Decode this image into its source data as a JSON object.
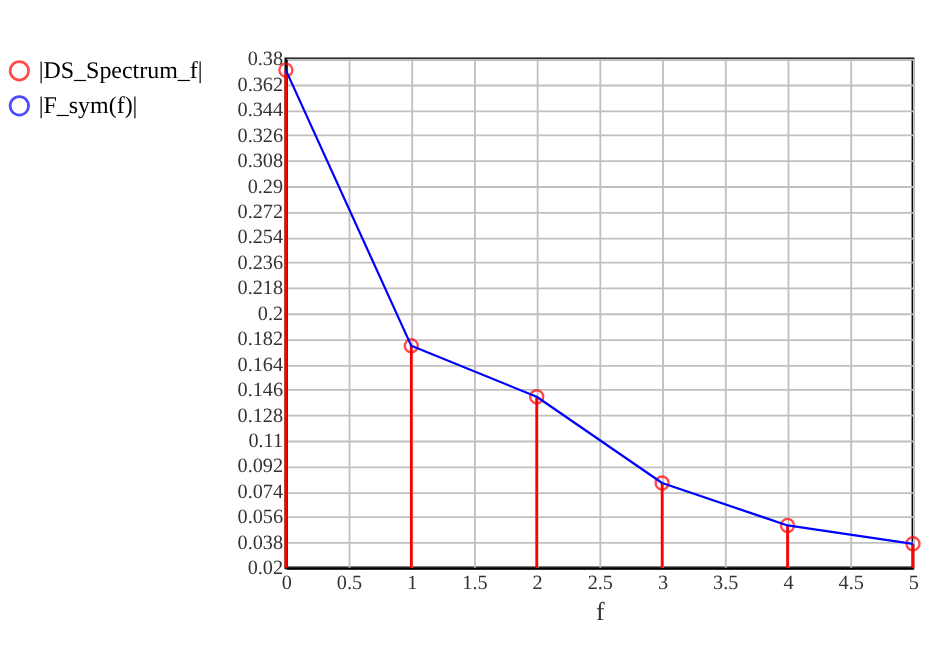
{
  "chart_data": {
    "type": "line",
    "xlabel": "f",
    "x": [
      0,
      1,
      2,
      3,
      4,
      5
    ],
    "series": [
      {
        "name": "|DS_Spectrum_f|",
        "type": "lollipop",
        "color": "#ff0000",
        "marker": "circle",
        "values": [
          0.372,
          0.177,
          0.141,
          0.08,
          0.05,
          0.037
        ]
      },
      {
        "name": "|F_sym(f)|",
        "color": "#0000ff",
        "marker": "none",
        "line_style": "solid",
        "values": [
          0.372,
          0.177,
          0.141,
          0.08,
          0.05,
          0.037
        ]
      }
    ],
    "xlim": [
      0,
      5
    ],
    "xticks": [
      0,
      0.5,
      1,
      1.5,
      2,
      2.5,
      3,
      3.5,
      4,
      4.5,
      5
    ],
    "ylim": [
      0.02,
      0.38
    ],
    "yticks": [
      0.02,
      0.038,
      0.056,
      0.074,
      0.092,
      0.11,
      0.128,
      0.146,
      0.164,
      0.182,
      0.2,
      0.218,
      0.236,
      0.254,
      0.272,
      0.29,
      0.308,
      0.326,
      0.344,
      0.362,
      0.38
    ],
    "grid": true,
    "legend": "left"
  }
}
